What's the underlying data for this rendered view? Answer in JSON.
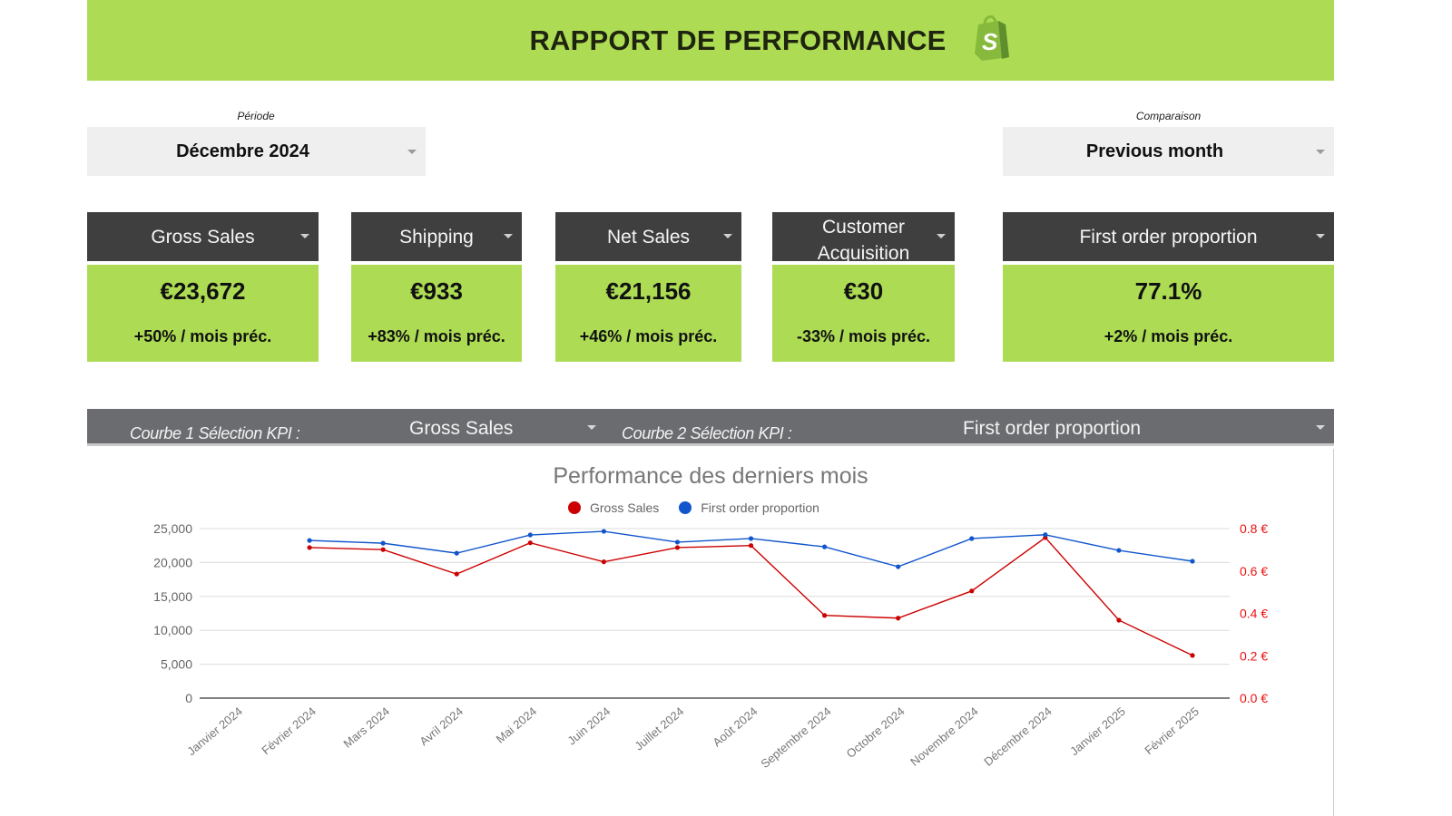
{
  "header": {
    "title": "RAPPORT DE PERFORMANCE",
    "logo_icon": "shopify-bag-icon",
    "logo_letter": "S",
    "background": "#addc54"
  },
  "filters": {
    "period": {
      "label": "Période",
      "value": "Décembre 2024"
    },
    "comparison": {
      "label": "Comparaison",
      "value": "Previous month"
    }
  },
  "kpis": [
    {
      "label": "Gross Sales",
      "value": "€23,672",
      "delta": "+50% / mois préc."
    },
    {
      "label": "Shipping",
      "value": "€933",
      "delta": "+83% / mois préc."
    },
    {
      "label": "Net Sales",
      "value": "€21,156",
      "delta": "+46% / mois préc."
    },
    {
      "label": "Customer Acquisition",
      "value": "€30",
      "delta": "-33% / mois préc."
    },
    {
      "label": "First order proportion",
      "value": "77.1%",
      "delta": "+2% / mois préc."
    }
  ],
  "curve_selectors": {
    "curve1": {
      "label": "Courbe 1 Sélection KPI :",
      "value": "Gross Sales"
    },
    "curve2": {
      "label": "Courbe 2 Sélection KPI :",
      "value": "First order proportion"
    }
  },
  "colors": {
    "accent_green": "#addc54",
    "kpi_header": "#3f3f3f",
    "selector_bar": "#6b6c70",
    "series1": "#cc0000",
    "series2": "#1155cc"
  },
  "chart_data": {
    "type": "line",
    "title": "Performance des derniers mois",
    "xlabel": "",
    "ylabel": "",
    "categories": [
      "Janvier 2024",
      "Février 2024",
      "Mars 2024",
      "Avril 2024",
      "Mai 2024",
      "Juin 2024",
      "Juillet 2024",
      "Août 2024",
      "Septembre 2024",
      "Octobre 2024",
      "Novembre 2024",
      "Décembre 2024",
      "Janvier 2025",
      "Février 2025"
    ],
    "series": [
      {
        "name": "Gross Sales",
        "axis": "left",
        "color": "#cc0000",
        "values": [
          null,
          22200,
          21900,
          18300,
          22900,
          20100,
          22200,
          22500,
          12200,
          11800,
          15800,
          23672,
          11500,
          6300
        ]
      },
      {
        "name": "First order proportion",
        "axis": "right",
        "color": "#1155cc",
        "values": [
          null,
          0.744,
          0.731,
          0.684,
          0.77,
          0.787,
          0.736,
          0.753,
          0.714,
          0.62,
          0.753,
          0.771,
          0.697,
          0.646
        ]
      }
    ],
    "left_axis": {
      "ylim": [
        0,
        25000
      ],
      "ticks": [
        "0",
        "5,000",
        "10,000",
        "15,000",
        "20,000",
        "25,000"
      ]
    },
    "right_axis": {
      "ylim": [
        0,
        0.8
      ],
      "ticks": [
        "0.0 €",
        "0.2 €",
        "0.4 €",
        "0.6 €",
        "0.8 €"
      ],
      "color": "#ee1111"
    },
    "legend": {
      "position": "top",
      "entries": [
        "Gross Sales",
        "First order proportion"
      ]
    },
    "grid": true
  }
}
